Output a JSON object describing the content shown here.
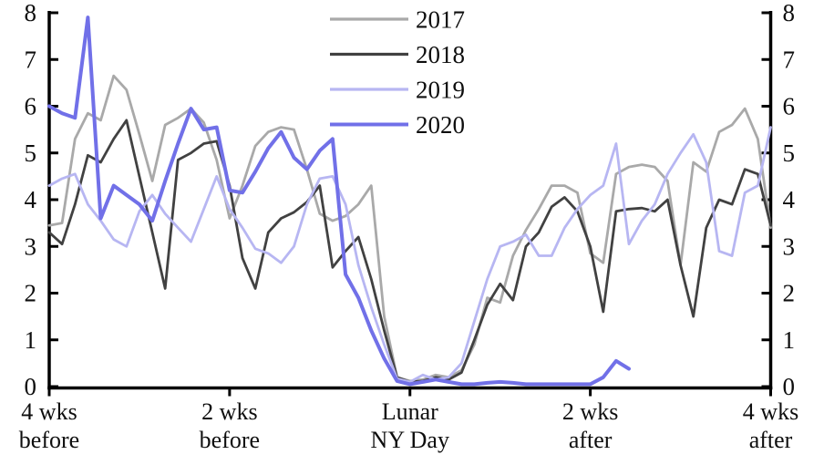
{
  "chart_data": {
    "type": "line",
    "title": "",
    "xlabel": "",
    "ylabel": "",
    "x_unit": "days relative to Lunar New Year",
    "x_range": [
      -28,
      28
    ],
    "ylim": [
      0,
      8
    ],
    "grid": false,
    "dual_y_axis": true,
    "y_ticks": [
      "0",
      "1",
      "2",
      "3",
      "4",
      "5",
      "6",
      "7",
      "8"
    ],
    "x_ticks": [
      {
        "day": -28,
        "line1": "4 wks",
        "line2": "before"
      },
      {
        "day": -14,
        "line1": "2 wks",
        "line2": "before"
      },
      {
        "day": 0,
        "line1": "Lunar",
        "line2": "NY Day"
      },
      {
        "day": 14,
        "line1": "2 wks",
        "line2": "after"
      },
      {
        "day": 28,
        "line1": "4 wks",
        "line2": "after"
      }
    ],
    "legend_position": "top-center",
    "axis_color": "#000000",
    "series": [
      {
        "name": "2017",
        "color": "#a9a9a9",
        "line_width": 2.8,
        "x_start": -28,
        "values": [
          3.45,
          3.5,
          5.3,
          5.85,
          5.7,
          6.65,
          6.35,
          5.4,
          4.4,
          5.6,
          5.75,
          5.95,
          5.65,
          4.85,
          3.6,
          4.3,
          5.15,
          5.45,
          5.55,
          5.5,
          4.65,
          3.7,
          3.55,
          3.65,
          3.9,
          4.3,
          1.5,
          0.2,
          0.12,
          0.15,
          0.25,
          0.2,
          0.35,
          0.9,
          1.9,
          1.8,
          2.8,
          3.35,
          3.8,
          4.3,
          4.3,
          4.15,
          2.85,
          2.65,
          4.55,
          4.7,
          4.75,
          4.7,
          4.4,
          2.6,
          4.8,
          4.6,
          5.45,
          5.6,
          5.95,
          5.3,
          3.4
        ]
      },
      {
        "name": "2018",
        "color": "#414141",
        "line_width": 2.8,
        "x_start": -28,
        "values": [
          3.3,
          3.05,
          3.9,
          4.95,
          4.8,
          5.3,
          5.7,
          4.5,
          3.3,
          2.1,
          4.85,
          5.0,
          5.2,
          5.25,
          4.3,
          2.75,
          2.1,
          3.3,
          3.6,
          3.73,
          3.95,
          4.3,
          2.55,
          2.9,
          3.2,
          2.3,
          1.2,
          0.2,
          0.1,
          0.12,
          0.2,
          0.15,
          0.3,
          1.0,
          1.75,
          2.2,
          1.85,
          3.0,
          3.3,
          3.85,
          4.05,
          3.75,
          3.0,
          1.6,
          3.75,
          3.8,
          3.82,
          3.75,
          4.0,
          2.6,
          1.5,
          3.4,
          4.0,
          3.9,
          4.65,
          4.55,
          3.45
        ]
      },
      {
        "name": "2019",
        "color": "#b7b6f2",
        "line_width": 2.8,
        "x_start": -28,
        "values": [
          4.3,
          4.45,
          4.55,
          3.9,
          3.55,
          3.15,
          3.0,
          3.75,
          4.1,
          3.7,
          3.4,
          3.1,
          3.8,
          4.5,
          3.8,
          3.4,
          2.95,
          2.85,
          2.65,
          3.0,
          3.9,
          4.45,
          4.5,
          3.9,
          2.6,
          1.7,
          0.9,
          0.17,
          0.1,
          0.25,
          0.15,
          0.2,
          0.5,
          1.4,
          2.3,
          3.0,
          3.1,
          3.25,
          2.8,
          2.8,
          3.4,
          3.8,
          4.1,
          4.3,
          5.2,
          3.05,
          3.55,
          3.9,
          4.55,
          5.0,
          5.4,
          4.8,
          2.9,
          2.8,
          4.15,
          4.3,
          5.55
        ]
      },
      {
        "name": "2020",
        "color": "#7170e8",
        "line_width": 4.0,
        "x_start": -28,
        "values": [
          6.0,
          5.85,
          5.75,
          7.9,
          3.6,
          4.3,
          4.1,
          3.9,
          3.55,
          4.4,
          5.2,
          5.95,
          5.5,
          5.55,
          4.2,
          4.15,
          4.6,
          5.1,
          5.45,
          4.9,
          4.65,
          5.05,
          5.3,
          2.4,
          1.9,
          1.2,
          0.6,
          0.12,
          0.05,
          0.1,
          0.15,
          0.1,
          0.05,
          0.05,
          0.08,
          0.1,
          0.08,
          0.05,
          0.05,
          0.05,
          0.05,
          0.05,
          0.05,
          0.2,
          0.55,
          0.38
        ]
      }
    ]
  }
}
